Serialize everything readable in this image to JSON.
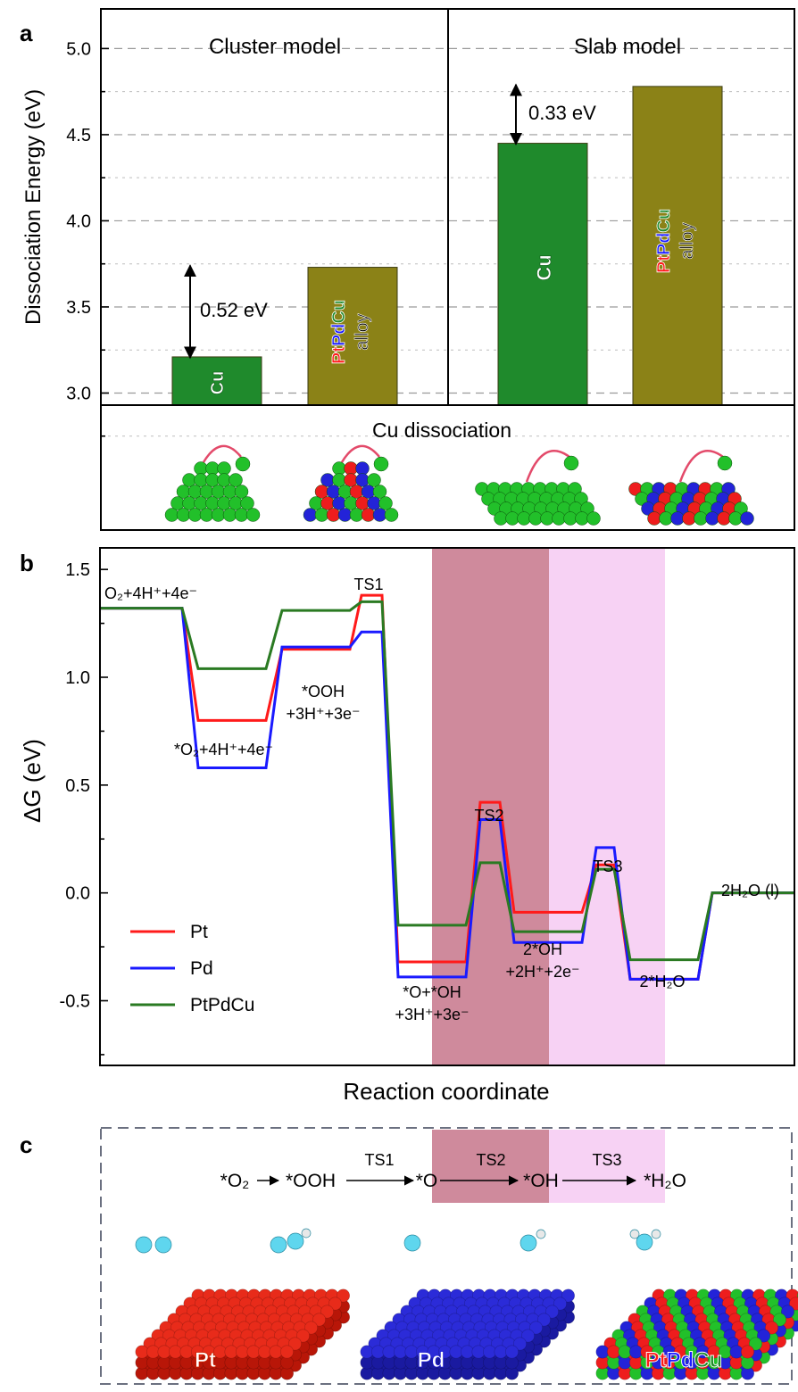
{
  "panels": {
    "a": "a",
    "b": "b",
    "c": "c"
  },
  "panel_a": {
    "sections": [
      {
        "title": "Cluster model",
        "bar_labels": [
          "Cu",
          "PtPdCu alloy"
        ],
        "gap_label": "0.52 eV"
      },
      {
        "title": "Slab model",
        "bar_labels": [
          "Cu",
          "PtPdCu alloy"
        ],
        "gap_label": "0.33 eV"
      }
    ],
    "strip_title": "Cu dissociation",
    "alloy_letters": [
      "Pt",
      "Pd",
      "Cu"
    ],
    "alloy_word": "alloy"
  },
  "panel_b": {
    "ts_labels": [
      "TS1",
      "TS2",
      "TS3"
    ],
    "state_labels": {
      "start": "O₂+4H⁺+4e⁻",
      "o2": "*O₂+4H⁺+4e⁻",
      "ooh_1": "*OOH",
      "ooh_2": "+3H⁺+3e⁻",
      "o_oh_1": "*O+*OH",
      "o_oh_2": "+3H⁺+3e⁻",
      "two_oh_1": "2*OH",
      "two_oh_2": "+2H⁺+2e⁻",
      "h2o_star": "2*H₂O",
      "end": "2H₂O (l)"
    },
    "legend": [
      "Pt",
      "Pd",
      "PtPdCu"
    ]
  },
  "panel_c": {
    "scheme": {
      "species": [
        "*O₂",
        "*OOH",
        "*O",
        "*OH",
        "*H₂O"
      ],
      "steps": [
        "TS1",
        "TS2",
        "TS3"
      ]
    },
    "slab_labels": [
      "Pt",
      "Pd"
    ],
    "alloy_letters": [
      "Pt",
      "Pd",
      "Cu"
    ]
  },
  "colors": {
    "cu_bar": "#1f8a2c",
    "alloy_bar": "#8b8217",
    "pt": "#ff1a1a",
    "pd": "#1a1aff",
    "ptpdcu": "#2a7a22",
    "ts2_band": "#cf8a9c",
    "ts3_band": "#f7d2f4"
  },
  "chart_data": [
    {
      "type": "bar",
      "ylabel": "Dissociation Energy (eV)",
      "ylim": [
        2.93,
        5.23
      ],
      "yticks": [
        3.0,
        3.5,
        4.0,
        4.5,
        5.0
      ],
      "grid": true,
      "categories": [
        "Cu",
        "PtPdCu alloy",
        "Cu",
        "PtPdCu alloy"
      ],
      "groups": [
        "Cluster model",
        "Cluster model",
        "Slab model",
        "Slab model"
      ],
      "values": [
        3.21,
        3.73,
        4.45,
        4.78
      ]
    },
    {
      "type": "line",
      "xlabel": "Reaction coordinate",
      "ylabel": "ΔG (eV)",
      "ylim": [
        -0.8,
        1.6
      ],
      "yticks": [
        -0.5,
        0.0,
        0.5,
        1.0,
        1.5
      ],
      "legend_position": "bottom-left",
      "series": [
        {
          "name": "Pt",
          "levels": [
            1.32,
            0.8,
            1.13,
            1.38,
            -0.32,
            0.42,
            -0.09,
            0.13,
            -0.4,
            0.0
          ]
        },
        {
          "name": "Pd",
          "levels": [
            1.32,
            0.58,
            1.14,
            1.21,
            -0.39,
            0.34,
            -0.23,
            0.21,
            -0.4,
            0.0
          ]
        },
        {
          "name": "PtPdCu",
          "levels": [
            1.32,
            1.04,
            1.31,
            1.35,
            -0.15,
            0.14,
            -0.18,
            0.11,
            -0.31,
            0.0
          ]
        }
      ]
    }
  ]
}
